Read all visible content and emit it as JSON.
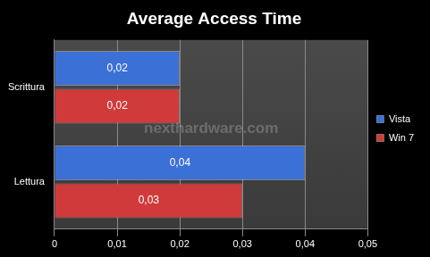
{
  "chart_data": {
    "type": "bar",
    "title": "Average Access Time",
    "orientation": "horizontal",
    "categories": [
      "Scrittura",
      "Lettura"
    ],
    "series": [
      {
        "name": "Vista",
        "color": "#3b70d6",
        "values": [
          0.02,
          0.04
        ],
        "value_labels": [
          "0,02",
          "0,04"
        ]
      },
      {
        "name": "Win 7",
        "color": "#d03a3a",
        "values": [
          0.02,
          0.03
        ],
        "value_labels": [
          "0,02",
          "0,03"
        ]
      }
    ],
    "xlim": [
      0,
      0.05
    ],
    "xticks": [
      0,
      {
        "value": 0.01,
        "label": "0,01"
      },
      {
        "value": 0.02,
        "label": "0,02"
      },
      {
        "value": 0.03,
        "label": "0,03"
      },
      {
        "value": 0.04,
        "label": "0,04"
      },
      {
        "value": 0.05,
        "label": "0,05"
      }
    ],
    "grid": true,
    "legend": "right",
    "data_labels": true,
    "annotations": [
      "nexthardware.com"
    ]
  }
}
